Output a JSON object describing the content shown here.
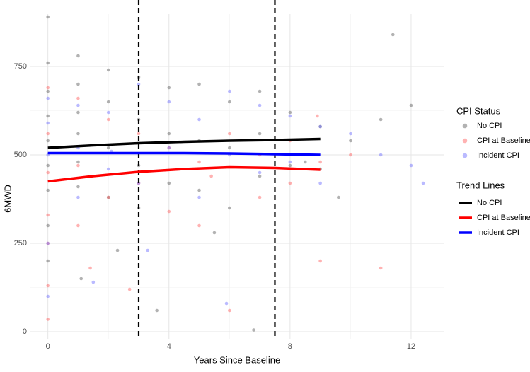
{
  "chart_data": {
    "type": "scatter",
    "x_label": "Years Since Baseline",
    "y_label": "6MWD",
    "xlim": [
      -0.6,
      13.1
    ],
    "ylim": [
      -22,
      898
    ],
    "xticks": [
      0,
      4,
      8,
      12
    ],
    "yticks": [
      0,
      250,
      500,
      750
    ],
    "grid": true,
    "vlines": [
      3,
      7.5
    ],
    "legend_title": "CPI Status",
    "trend_legend_title": "Trend Lines",
    "series": [
      {
        "name": "No CPI",
        "color": "#555555",
        "x": [
          0,
          0,
          0,
          0,
          0,
          0,
          0,
          0,
          1,
          1,
          1,
          1,
          1,
          1,
          2,
          2,
          2,
          2,
          3,
          3,
          3,
          3,
          4,
          4,
          4,
          5,
          5,
          5,
          6,
          6,
          6,
          7,
          7,
          7,
          8,
          8,
          9,
          9,
          10,
          11,
          12,
          1.1,
          2.3,
          3.6,
          5.5,
          6.8,
          8.5,
          9.6,
          11.4,
          0
        ],
        "values": [
          890,
          760,
          680,
          610,
          540,
          470,
          400,
          300,
          780,
          700,
          620,
          560,
          480,
          410,
          740,
          650,
          520,
          380,
          720,
          600,
          470,
          350,
          690,
          560,
          420,
          700,
          540,
          400,
          650,
          520,
          350,
          680,
          560,
          440,
          620,
          470,
          580,
          460,
          540,
          600,
          640,
          150,
          230,
          60,
          280,
          5,
          480,
          380,
          840,
          200
        ]
      },
      {
        "name": "CPI at Baseline",
        "color": "#ff5555",
        "x": [
          0,
          0,
          0,
          0,
          0,
          0,
          1,
          1,
          1,
          2,
          2,
          3,
          3,
          4,
          4,
          5,
          5,
          6,
          6,
          7,
          7,
          8,
          8,
          9,
          9,
          10,
          11,
          0,
          1.4,
          2.7,
          5.4,
          8.9
        ],
        "values": [
          690,
          560,
          450,
          330,
          130,
          35,
          660,
          470,
          300,
          600,
          380,
          560,
          420,
          520,
          340,
          480,
          300,
          560,
          60,
          500,
          380,
          540,
          420,
          480,
          200,
          500,
          180,
          250,
          180,
          120,
          440,
          610
        ]
      },
      {
        "name": "Incident CPI",
        "color": "#6666ff",
        "x": [
          0,
          0,
          0,
          0,
          0,
          1,
          1,
          1,
          2,
          2,
          3,
          3,
          4,
          4,
          5,
          5,
          6,
          6,
          7,
          7,
          8,
          8,
          9,
          9,
          10,
          11,
          12,
          12.4,
          1.5,
          3.3,
          5.9,
          2.1
        ],
        "values": [
          660,
          590,
          500,
          250,
          100,
          640,
          520,
          380,
          620,
          460,
          700,
          420,
          650,
          520,
          600,
          380,
          680,
          500,
          640,
          450,
          610,
          480,
          580,
          420,
          560,
          500,
          470,
          420,
          140,
          230,
          80,
          510
        ]
      }
    ],
    "trend_lines": [
      {
        "name": "No CPI",
        "color": "#000000",
        "x": [
          0,
          1.5,
          3,
          4.5,
          6,
          7.5,
          9
        ],
        "values": [
          520,
          527,
          533,
          537,
          540,
          542,
          545
        ]
      },
      {
        "name": "CPI at Baseline",
        "color": "#ff0000",
        "x": [
          0,
          1.5,
          3,
          4.5,
          6,
          7.5,
          9
        ],
        "values": [
          425,
          440,
          452,
          460,
          465,
          463,
          458
        ]
      },
      {
        "name": "Incident CPI",
        "color": "#0000ff",
        "x": [
          0,
          1.5,
          3,
          4.5,
          6,
          7.5,
          9
        ],
        "values": [
          505,
          505,
          505,
          505,
          504,
          502,
          500
        ]
      }
    ]
  }
}
